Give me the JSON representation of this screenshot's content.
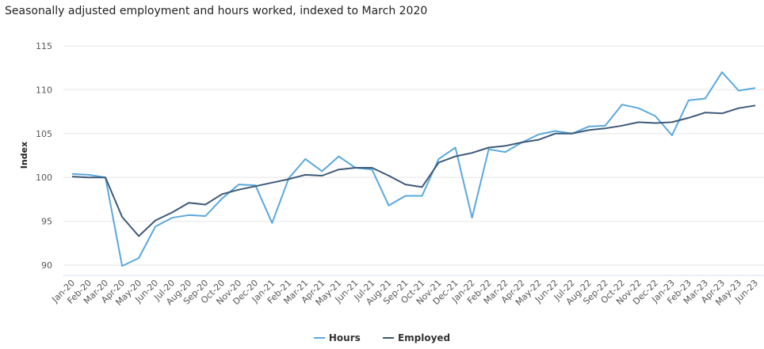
{
  "chart_data": {
    "type": "line",
    "title": "Seasonally adjusted employment and hours worked, indexed to March 2020",
    "xlabel": "",
    "ylabel": "Index",
    "ylim": [
      90,
      115
    ],
    "yticks": [
      "90",
      "95",
      "100",
      "105",
      "110",
      "115"
    ],
    "grid": true,
    "legend": "bottom",
    "categories": [
      "Jan-20",
      "Feb-20",
      "Mar-20",
      "Apr-20",
      "May-20",
      "Jun-20",
      "Jul-20",
      "Aug-20",
      "Sep-20",
      "Oct-20",
      "Nov-20",
      "Dec-20",
      "Jan-21",
      "Feb-21",
      "Mar-21",
      "Apr-21",
      "May-21",
      "Jun-21",
      "Jul-21",
      "Aug-21",
      "Sep-21",
      "Oct-21",
      "Nov-21",
      "Dec-21",
      "Jan-22",
      "Feb-22",
      "Mar-22",
      "Apr-22",
      "May-22",
      "Jun-22",
      "Jul-22",
      "Aug-22",
      "Sep-22",
      "Oct-22",
      "Nov-22",
      "Dec-22",
      "Jan-23",
      "Feb-23",
      "Mar-23",
      "Apr-23",
      "May-23",
      "Jun-23"
    ],
    "series": [
      {
        "name": "Hours",
        "color": "#5aa8dc",
        "values": [
          100.4,
          100.3,
          100.0,
          89.9,
          90.8,
          94.4,
          95.4,
          95.7,
          95.6,
          97.6,
          99.2,
          99.1,
          94.8,
          99.9,
          102.1,
          100.7,
          102.4,
          101.1,
          100.9,
          96.8,
          97.9,
          97.9,
          102.1,
          103.4,
          95.4,
          103.2,
          102.9,
          104.0,
          104.9,
          105.3,
          105.0,
          105.8,
          105.9,
          108.3,
          107.9,
          107.0,
          104.8,
          108.8,
          109.0,
          112.0,
          109.9,
          110.2
        ]
      },
      {
        "name": "Employed",
        "color": "#3e5977",
        "values": [
          100.1,
          100.0,
          100.0,
          95.5,
          93.3,
          95.1,
          96.0,
          97.1,
          96.9,
          98.1,
          98.6,
          99.0,
          99.4,
          99.8,
          100.3,
          100.2,
          100.9,
          101.1,
          101.1,
          100.2,
          99.2,
          98.9,
          101.7,
          102.4,
          102.8,
          103.4,
          103.6,
          104.0,
          104.3,
          105.0,
          105.0,
          105.4,
          105.6,
          105.9,
          106.3,
          106.2,
          106.3,
          106.8,
          107.4,
          107.3,
          107.9,
          108.2
        ]
      }
    ]
  }
}
